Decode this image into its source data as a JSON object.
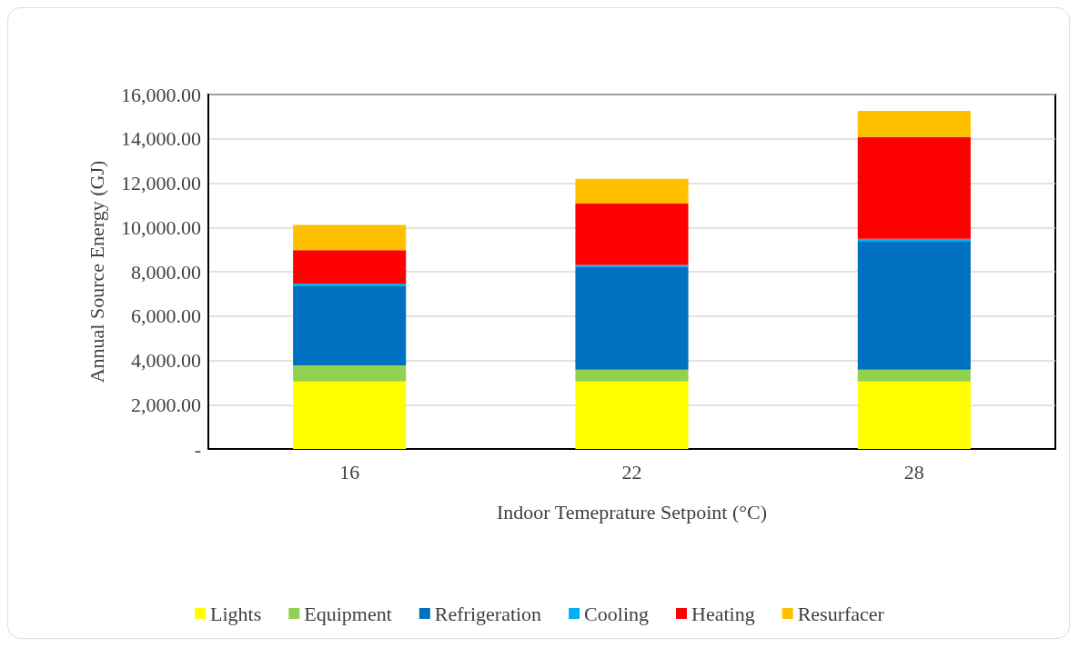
{
  "chart_data": {
    "type": "bar",
    "stacked": true,
    "xlabel": "Indoor Temeprature Setpoint (°C)",
    "ylabel": "Annual Source Energy (GJ)",
    "categories": [
      "16",
      "22",
      "28"
    ],
    "series": [
      {
        "name": "Lights",
        "color": "#ffff00",
        "values": [
          3050,
          3050,
          3050
        ]
      },
      {
        "name": "Equipment",
        "color": "#92d050",
        "values": [
          720,
          530,
          530
        ]
      },
      {
        "name": "Refrigeration",
        "color": "#0070c0",
        "values": [
          3600,
          4650,
          5800
        ]
      },
      {
        "name": "Cooling",
        "color": "#00b0f0",
        "values": [
          100,
          80,
          110
        ]
      },
      {
        "name": "Heating",
        "color": "#ff0000",
        "values": [
          1500,
          2770,
          4590
        ]
      },
      {
        "name": "Resurfacer",
        "color": "#ffc000",
        "values": [
          1140,
          1110,
          1180
        ]
      }
    ],
    "ylim": [
      0,
      16000
    ],
    "yticks": [
      {
        "value": 0,
        "label": "-"
      },
      {
        "value": 2000,
        "label": "2,000.00"
      },
      {
        "value": 4000,
        "label": "4,000.00"
      },
      {
        "value": 6000,
        "label": "6,000.00"
      },
      {
        "value": 8000,
        "label": "8,000.00"
      },
      {
        "value": 10000,
        "label": "10,000.00"
      },
      {
        "value": 12000,
        "label": "12,000.00"
      },
      {
        "value": 14000,
        "label": "14,000.00"
      },
      {
        "value": 16000,
        "label": "16,000.00"
      }
    ],
    "grid": "y",
    "legend": "bottom"
  }
}
